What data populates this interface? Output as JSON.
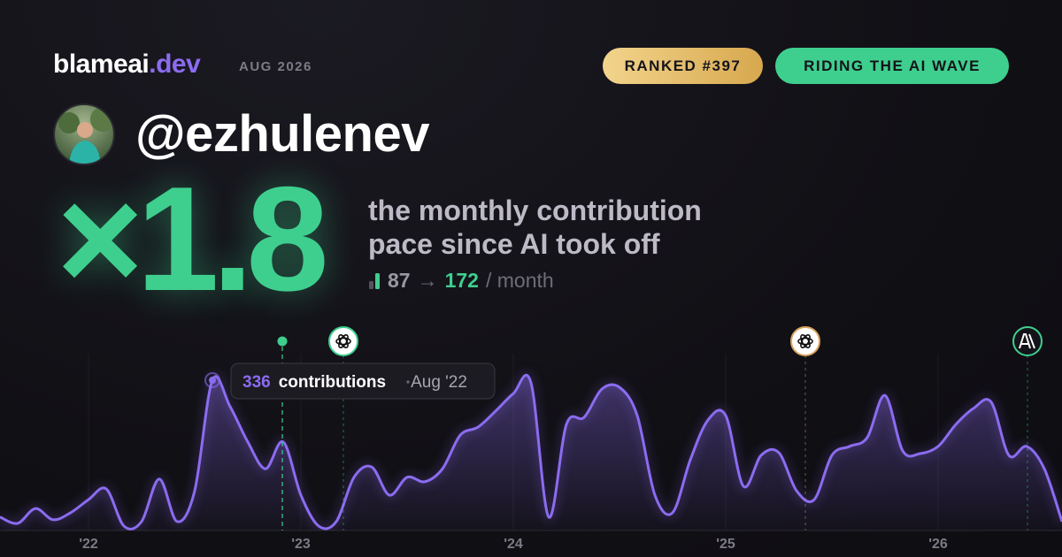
{
  "header": {
    "brand": "blameai",
    "brand_tld": ".dev",
    "period": "AUG 2026",
    "badges": [
      "RANKED #397",
      "RIDING THE AI WAVE"
    ]
  },
  "profile": {
    "username": "@ezhulenev"
  },
  "headline": {
    "multiplier": "×1.8",
    "description": "the monthly contribution pace since AI took off",
    "before": 87,
    "arrow": "→",
    "after": 172,
    "unit": "/ month"
  },
  "chart_data": {
    "type": "area",
    "categories": [
      null,
      null,
      null,
      null,
      null,
      "'22",
      null,
      null,
      null,
      null,
      null,
      null,
      null,
      null,
      null,
      null,
      null,
      "'23",
      null,
      null,
      null,
      null,
      null,
      null,
      null,
      null,
      null,
      null,
      null,
      "'24",
      null,
      null,
      null,
      null,
      null,
      null,
      null,
      null,
      null,
      null,
      null,
      "'25",
      null,
      null,
      null,
      null,
      null,
      null,
      null,
      null,
      null,
      null,
      null,
      "'26",
      null,
      null,
      null,
      null,
      null,
      null,
      null
    ],
    "values": [
      30,
      16,
      49,
      24,
      40,
      69,
      93,
      10,
      20,
      115,
      20,
      89,
      336,
      277,
      198,
      138,
      198,
      79,
      10,
      20,
      119,
      142,
      79,
      119,
      109,
      138,
      213,
      231,
      267,
      306,
      330,
      30,
      237,
      253,
      316,
      320,
      257,
      79,
      40,
      158,
      247,
      257,
      99,
      168,
      174,
      89,
      69,
      168,
      188,
      208,
      302,
      178,
      172,
      188,
      237,
      273,
      287,
      168,
      188,
      138,
      20
    ],
    "color": "#8b6cf0",
    "ylim": [
      0,
      340
    ],
    "grid": true,
    "tooltip": {
      "label": "contributions",
      "date": "Aug '22"
    }
  }
}
